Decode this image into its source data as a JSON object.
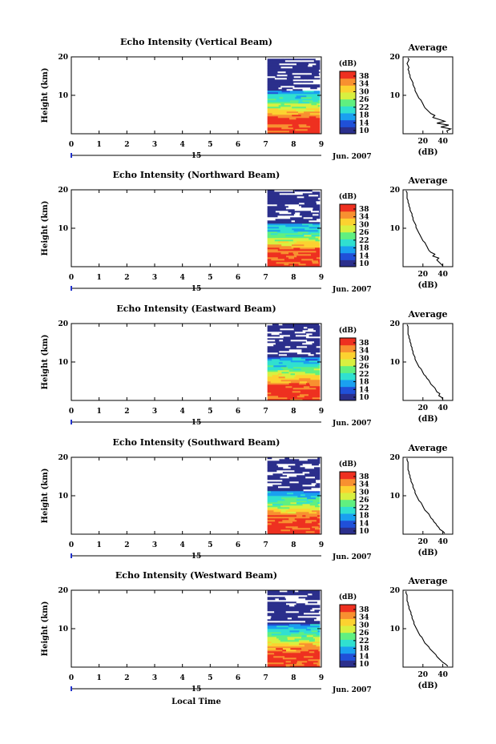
{
  "panels": [
    {
      "title": "Echo Intensity (Vertical Beam)",
      "avg_xticks": [
        "20",
        "40"
      ],
      "avg_profile": [
        45,
        44,
        48,
        38,
        46,
        34,
        42,
        36,
        30,
        32,
        28,
        26,
        24,
        22,
        21,
        20,
        19,
        18,
        16,
        15,
        14,
        13,
        12,
        12,
        11,
        10,
        10,
        9,
        8,
        7,
        7,
        6,
        6,
        5,
        6,
        5,
        4,
        5,
        6,
        5
      ]
    },
    {
      "title": "Echo Intensity (Northward Beam)",
      "avg_xticks": [
        "20",
        "40"
      ],
      "avg_profile": [
        40,
        38,
        36,
        34,
        36,
        30,
        32,
        28,
        26,
        25,
        24,
        23,
        22,
        20,
        19,
        18,
        17,
        16,
        15,
        14,
        13,
        13,
        12,
        11,
        10,
        10,
        9,
        9,
        8,
        7,
        7,
        6,
        6,
        5,
        5,
        4,
        4,
        4,
        4,
        3
      ]
    },
    {
      "title": "Echo Intensity (Eastward Beam)",
      "avg_xticks": [
        "20",
        "40"
      ],
      "avg_profile": [
        40,
        39,
        36,
        37,
        34,
        33,
        32,
        30,
        28,
        27,
        26,
        24,
        23,
        21,
        20,
        19,
        18,
        16,
        15,
        14,
        13,
        12,
        12,
        11,
        10,
        10,
        9,
        9,
        8,
        8,
        7,
        7,
        6,
        6,
        5,
        5,
        5,
        5,
        5,
        4
      ]
    },
    {
      "title": "Echo Intensity (Southward Beam)",
      "avg_xticks": [
        "20",
        "40"
      ],
      "avg_profile": [
        42,
        40,
        37,
        36,
        34,
        33,
        31,
        30,
        28,
        27,
        26,
        24,
        22,
        21,
        20,
        19,
        18,
        16,
        15,
        14,
        13,
        12,
        12,
        11,
        10,
        10,
        9,
        8,
        8,
        7,
        7,
        6,
        6,
        5,
        5,
        5,
        5,
        5,
        4,
        4
      ]
    },
    {
      "title": "Echo Intensity (Westward Beam)",
      "avg_xticks": [
        "20",
        "40"
      ],
      "avg_profile": [
        45,
        43,
        40,
        38,
        36,
        34,
        33,
        31,
        29,
        27,
        26,
        24,
        22,
        21,
        20,
        19,
        17,
        16,
        15,
        14,
        13,
        12,
        11,
        11,
        10,
        9,
        9,
        8,
        8,
        7,
        6,
        6,
        5,
        5,
        4,
        4,
        4,
        4,
        3,
        3
      ]
    }
  ],
  "labels": {
    "ylabel": "Height (km)",
    "avg_title": "Average",
    "avg_xlabel": "(dB)",
    "colorbar_title": "(dB)",
    "date_day": "15",
    "month_year": "Jun. 2007",
    "xlabel": "Local Time"
  },
  "chart_data": {
    "type": "heatmap",
    "x_ticks": [
      "0",
      "1",
      "2",
      "3",
      "4",
      "5",
      "6",
      "7",
      "8",
      "9"
    ],
    "xlim": [
      0,
      9
    ],
    "y_ticks": [
      "10",
      "20"
    ],
    "ylim": [
      0,
      20
    ],
    "data_x_range": [
      7,
      9
    ],
    "colorbar_ticks": [
      "10",
      "14",
      "18",
      "22",
      "26",
      "30",
      "34",
      "38"
    ],
    "colorbar_range": [
      10,
      38
    ],
    "avg_xlim": [
      0,
      50
    ]
  },
  "colors": {
    "colormap": [
      "#2b2f8c",
      "#2050d8",
      "#1aa0f0",
      "#30e0d0",
      "#60f080",
      "#d8f040",
      "#fcd230",
      "#f89030",
      "#ee3020"
    ]
  }
}
